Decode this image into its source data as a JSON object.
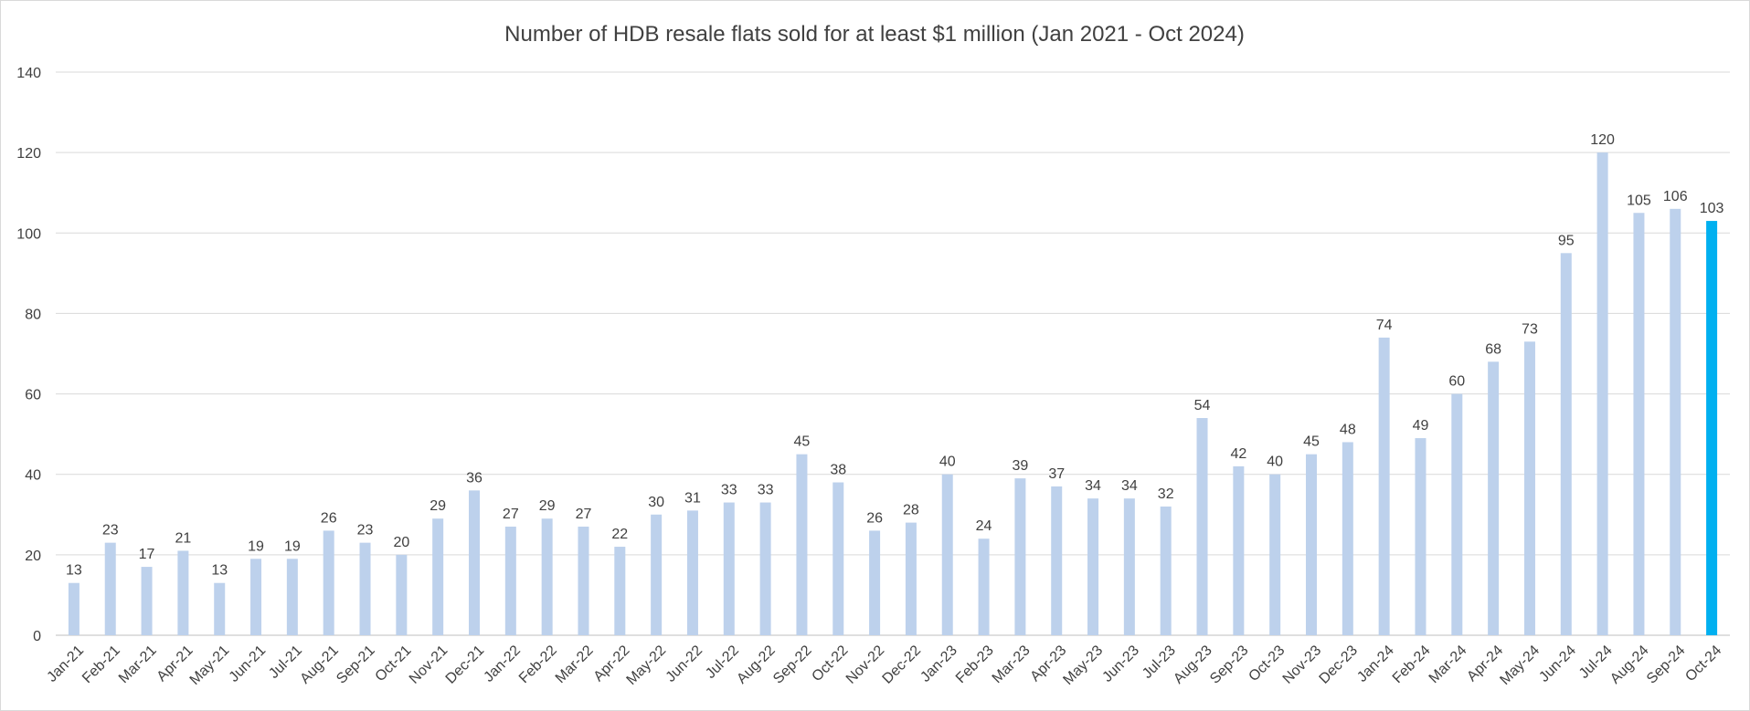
{
  "chart_data": {
    "type": "bar",
    "title": "Number of HDB resale flats sold for at least $1 million (Jan 2021 -  Oct 2024)",
    "xlabel": "",
    "ylabel": "",
    "ylim": [
      0,
      140
    ],
    "yticks": [
      0,
      20,
      40,
      60,
      80,
      100,
      120,
      140
    ],
    "grid": true,
    "legend": "none",
    "colors": {
      "bar": "#bdd1ec",
      "highlight": "#00b0f0",
      "grid": "#d9d9d9",
      "text": "#404040"
    },
    "highlight_index": 45,
    "categories": [
      "Jan-21",
      "Feb-21",
      "Mar-21",
      "Apr-21",
      "May-21",
      "Jun-21",
      "Jul-21",
      "Aug-21",
      "Sep-21",
      "Oct-21",
      "Nov-21",
      "Dec-21",
      "Jan-22",
      "Feb-22",
      "Mar-22",
      "Apr-22",
      "May-22",
      "Jun-22",
      "Jul-22",
      "Aug-22",
      "Sep-22",
      "Oct-22",
      "Nov-22",
      "Dec-22",
      "Jan-23",
      "Feb-23",
      "Mar-23",
      "Apr-23",
      "May-23",
      "Jun-23",
      "Jul-23",
      "Aug-23",
      "Sep-23",
      "Oct-23",
      "Nov-23",
      "Dec-23",
      "Jan-24",
      "Feb-24",
      "Mar-24",
      "Apr-24",
      "May-24",
      "Jun-24",
      "Jul-24",
      "Aug-24",
      "Sep-24",
      "Oct-24"
    ],
    "values": [
      13,
      23,
      17,
      21,
      13,
      19,
      19,
      26,
      23,
      20,
      29,
      36,
      27,
      29,
      27,
      22,
      30,
      31,
      33,
      33,
      45,
      38,
      26,
      28,
      40,
      24,
      39,
      37,
      34,
      34,
      32,
      54,
      42,
      40,
      45,
      48,
      74,
      49,
      60,
      68,
      73,
      95,
      120,
      105,
      106,
      103
    ]
  }
}
